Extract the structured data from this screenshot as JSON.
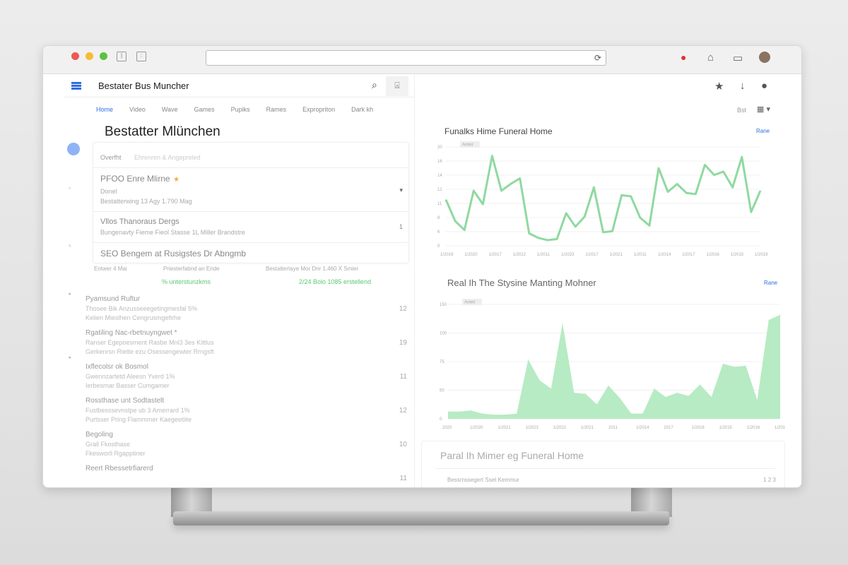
{
  "browser": {
    "reload_icon": "refresh-icon",
    "right_icons": [
      "notification-icon",
      "bank-icon",
      "wallet-icon",
      "profile-avatar"
    ]
  },
  "header": {
    "app_title": "Bestater Bus Muncher",
    "search_icon": "search-icon",
    "account_icon": "account-icon",
    "right_icons": [
      "star-icon",
      "download-icon",
      "settings-icon"
    ]
  },
  "nav": {
    "tabs": [
      "Home",
      "Video",
      "Wave",
      "Games",
      "Pupiks",
      "Rames",
      "Expropriton",
      "Dark kh"
    ]
  },
  "page": {
    "title": "Bestatter Mlünchen",
    "card": {
      "header": {
        "label": "Overfht",
        "sub": "Ehrenren & Angepreled"
      },
      "rows": [
        {
          "title": "PFOO Enre Mlirne",
          "star": "★",
          "sub1": "Donel",
          "sub2": "Bestatterwing 13 Agy 1.790 Mag",
          "chev": "▾"
        },
        {
          "title": "Vllos Thanoraus Dergs",
          "sub1": "Bungenavty Fieme Fieol Stasse 1L Miller Brandstre",
          "chev": "1"
        },
        {
          "title": "SEO Bengem at Rusigstes Dr Abngmb"
        }
      ]
    },
    "meta": [
      "Entwer 4 Mai",
      "Priesterfabnd an Ende",
      "Bestattertaye Mor Dnr 1.460 X Smier"
    ],
    "green": [
      "% unterstunzkms",
      "2/24 Bolo 1085 erstellend"
    ],
    "list": [
      {
        "title": "Pyamsund Ruftur",
        "l1": "Thosee Bik Anzusseeegetingmesfal 5%",
        "l2": "Kelien Mieslhen Cengrusmgefirhe",
        "n": "12"
      },
      {
        "title": "Rgatiling Nac-rbetnuyngwet *",
        "l1": "Ranser Egepoesment Rasbe Mnl3 3es Kittlus",
        "l2": "Gerkenrsn Riette ezu Osessengewter Rrngsft",
        "n": "19"
      },
      {
        "title": "Ixflecolsr ok Bosmol",
        "l1": "Gwennzartetd Aleesn Yverd 1%",
        "l2": "Ierbesrnar Basser Cumgamer",
        "n": "11"
      },
      {
        "title": "Rossthase unt Sodtastelt",
        "l1": "Fustbesssevnstpe ub 3 Amerrard 1%",
        "l2": "Purtsser Pring Flammmer Kaegeetiite",
        "n": "12"
      },
      {
        "title": "Begoling",
        "l1": "Grall Fkosthase",
        "l2": "Fkesworll Rgapptiner",
        "n": "10"
      },
      {
        "title": "Reert Rbessetrfiarerd",
        "l1": "",
        "l2": "",
        "n": "11"
      }
    ]
  },
  "right": {
    "view_label": "Bst",
    "grid_icon": "grid-icon",
    "bottom": {
      "title": "Paral Ih Mimer eg Funeral Home",
      "row": "Bessrnssegert Sset Kemmur",
      "row_meta": "1 2 3"
    }
  },
  "colors": {
    "accent": "#2f6fe0",
    "chart": "#8fd9a0",
    "chart_fill": "#b7ebc3"
  },
  "chart_data": [
    {
      "type": "line",
      "title": "Funalks Hime Funeral Home",
      "link": "Rane",
      "legend": "Anteil",
      "color": "#8fd9a0",
      "yticks": [
        "20",
        "16",
        "14",
        "12",
        "11",
        "8",
        "6",
        "0"
      ],
      "xticks": [
        "1/2019",
        "1/2020",
        "1/2017",
        "1/2022",
        "1/2011",
        "1/2023",
        "1/2017",
        "1/2021",
        "1/2011",
        "1/2014",
        "1/2017",
        "1/2016",
        "1/2015",
        "1/2019"
      ],
      "ylim": [
        0,
        22
      ],
      "grid": true,
      "values": [
        10.25,
        5.5,
        3.5,
        12.25,
        9.25,
        20,
        12.25,
        13.75,
        15,
        2.75,
        1.75,
        1.25,
        1.5,
        7.25,
        4.25,
        6.5,
        13,
        3,
        3.25,
        11.25,
        11,
        6.25,
        4.5,
        17.25,
        12,
        13.75,
        11.75,
        11.5,
        18,
        15.75,
        16.5,
        13,
        19.75,
        7.5,
        12.25
      ]
    },
    {
      "type": "area",
      "title": "Real Ih The Stysine Manting Mohner",
      "link": "Rane",
      "legend": "Anteil",
      "color": "#b7ebc3",
      "yticks": [
        "150",
        "100",
        "75",
        "50",
        "0"
      ],
      "xticks": [
        "2020",
        "1/2020",
        "1/2021",
        "1/2023",
        "1/2022",
        "1/2021",
        "2011",
        "1/2014",
        "2017",
        "1/2016",
        "1/2015",
        "1/2016",
        "1/2017"
      ],
      "ylim": [
        0,
        110
      ],
      "grid": true,
      "values": [
        7,
        7,
        8,
        5,
        4,
        4,
        5,
        57,
        37,
        29,
        92,
        25,
        24,
        14,
        32,
        20,
        5,
        5,
        29,
        21,
        25,
        22,
        33,
        21,
        53,
        50,
        51,
        18,
        95,
        100
      ]
    }
  ]
}
